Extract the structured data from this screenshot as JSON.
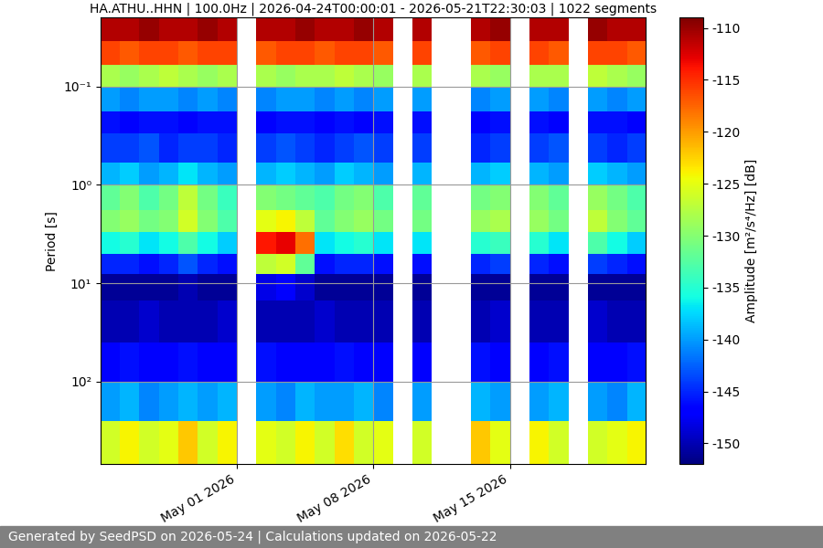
{
  "chart_data": {
    "type": "heatmap",
    "title": "HA.ATHU..HHN | 100.0Hz | 2026-04-24T00:00:01 - 2026-05-21T22:30:03 | 1022 segments",
    "y_label": "Period [s]",
    "colorbar_label": "Amplitude [m²/s⁴/Hz] [dB]",
    "footer": "Generated by SeedPSD on 2026-05-24 | Calculations updated on 2026-05-22",
    "log": "y",
    "grid": true,
    "x": [
      "2026-04-24",
      "2026-04-25",
      "2026-04-26",
      "2026-04-27",
      "2026-04-28",
      "2026-04-29",
      "2026-04-30",
      "2026-05-01",
      "2026-05-02",
      "2026-05-03",
      "2026-05-04",
      "2026-05-05",
      "2026-05-06",
      "2026-05-07",
      "2026-05-08",
      "2026-05-09",
      "2026-05-10",
      "2026-05-11",
      "2026-05-12",
      "2026-05-13",
      "2026-05-14",
      "2026-05-15",
      "2026-05-16",
      "2026-05-17",
      "2026-05-18",
      "2026-05-19",
      "2026-05-20",
      "2026-05-21"
    ],
    "xlim": [
      "2026-04-24T00:00:01",
      "2026-05-21T22:30:03"
    ],
    "xticks": [
      {
        "value": "2026-05-01",
        "label": "May 01 2026"
      },
      {
        "value": "2026-05-08",
        "label": "May 08 2026"
      },
      {
        "value": "2026-05-15",
        "label": "May 15 2026"
      }
    ],
    "period_edges": [
      0.02,
      0.035,
      0.06,
      0.1,
      0.18,
      0.3,
      0.6,
      1,
      1.8,
      3,
      5,
      8,
      15,
      40,
      100,
      250,
      690
    ],
    "ylim": [
      690,
      0.02
    ],
    "yticks": [
      {
        "value": 0.1,
        "label": "10⁻¹"
      },
      {
        "value": 1,
        "label": "10⁰"
      },
      {
        "value": 10,
        "label": "10¹"
      },
      {
        "value": 100,
        "label": "10²"
      }
    ],
    "colorbar_range": [
      -152,
      -109
    ],
    "colorbar_ticks": [
      -110,
      -115,
      -120,
      -125,
      -130,
      -135,
      -140,
      -145,
      -150
    ],
    "cells": [
      [
        -111,
        -111,
        -110,
        -111,
        -111,
        -110,
        -111,
        null,
        -111,
        -111,
        -110,
        -111,
        -111,
        -110,
        -111,
        null,
        -111,
        null,
        null,
        -111,
        -110,
        null,
        -111,
        -111,
        null,
        -110,
        -111,
        -111
      ],
      [
        -116,
        -117,
        -116,
        -116,
        -117,
        -116,
        -116,
        null,
        -117,
        -116,
        -116,
        -117,
        -116,
        -116,
        -117,
        null,
        -116,
        null,
        null,
        -117,
        -116,
        null,
        -116,
        -117,
        null,
        -116,
        -116,
        -117
      ],
      [
        -128,
        -129,
        -128,
        -127,
        -128,
        -129,
        -128,
        null,
        -128,
        -129,
        -128,
        -128,
        -127,
        -128,
        -129,
        null,
        -128,
        null,
        null,
        -128,
        -129,
        null,
        -128,
        -128,
        null,
        -127,
        -128,
        -129
      ],
      [
        -140,
        -141,
        -140,
        -140,
        -141,
        -140,
        -141,
        null,
        -141,
        -140,
        -140,
        -141,
        -140,
        -141,
        -140,
        null,
        -140,
        null,
        null,
        -141,
        -140,
        null,
        -140,
        -141,
        null,
        -140,
        -141,
        -140
      ],
      [
        -146,
        -147,
        -146,
        -146,
        -147,
        -146,
        -146,
        null,
        -147,
        -146,
        -146,
        -147,
        -146,
        -147,
        -146,
        null,
        -146,
        null,
        null,
        -147,
        -146,
        null,
        -146,
        -147,
        null,
        -146,
        -146,
        -147
      ],
      [
        -144,
        -144,
        -143,
        -145,
        -144,
        -144,
        -145,
        null,
        -144,
        -143,
        -144,
        -145,
        -144,
        -143,
        -144,
        null,
        -144,
        null,
        null,
        -145,
        -144,
        null,
        -144,
        -143,
        null,
        -144,
        -145,
        -144
      ],
      [
        -139,
        -138,
        -140,
        -139,
        -137,
        -139,
        -140,
        null,
        -139,
        -138,
        -139,
        -140,
        -138,
        -139,
        -140,
        null,
        -139,
        null,
        null,
        -139,
        -138,
        null,
        -139,
        -140,
        null,
        -138,
        -139,
        -140
      ],
      [
        -132,
        -130,
        -133,
        -131,
        -127,
        -131,
        -134,
        null,
        -130,
        -131,
        -132,
        -133,
        -131,
        -130,
        -133,
        null,
        -132,
        null,
        null,
        -131,
        -130,
        null,
        -130,
        -132,
        null,
        -129,
        -131,
        -133
      ],
      [
        -130,
        -129,
        -131,
        -130,
        -126,
        -130,
        -133,
        null,
        -125,
        -124,
        -127,
        -132,
        -130,
        -129,
        -131,
        null,
        -131,
        null,
        null,
        -129,
        -128,
        null,
        -129,
        -131,
        null,
        -127,
        -130,
        -132
      ],
      [
        -136,
        -135,
        -137,
        -136,
        -133,
        -136,
        -138,
        null,
        -114,
        -113,
        -118,
        -137,
        -136,
        -135,
        -137,
        null,
        -137,
        null,
        null,
        -135,
        -134,
        null,
        -135,
        -137,
        null,
        -133,
        -136,
        -138
      ],
      [
        -145,
        -145,
        -146,
        -145,
        -143,
        -145,
        -146,
        null,
        -127,
        -126,
        -132,
        -146,
        -145,
        -145,
        -146,
        null,
        -146,
        null,
        null,
        -145,
        -144,
        null,
        -145,
        -146,
        null,
        -144,
        -145,
        -146
      ],
      [
        -151,
        -151,
        -151,
        -151,
        -150,
        -151,
        -151,
        null,
        -148,
        -147,
        -149,
        -151,
        -151,
        -151,
        -151,
        null,
        -151,
        null,
        null,
        -151,
        -151,
        null,
        -151,
        -151,
        null,
        -151,
        -151,
        -151
      ],
      [
        -150,
        -150,
        -149,
        -150,
        -150,
        -150,
        -149,
        null,
        -150,
        -150,
        -150,
        -149,
        -150,
        -150,
        -150,
        null,
        -150,
        null,
        null,
        -150,
        -149,
        null,
        -150,
        -150,
        null,
        -149,
        -150,
        -150
      ],
      [
        -147,
        -146,
        -147,
        -147,
        -146,
        -147,
        -147,
        null,
        -146,
        -147,
        -147,
        -147,
        -146,
        -147,
        -147,
        null,
        -147,
        null,
        null,
        -146,
        -147,
        null,
        -147,
        -146,
        null,
        -147,
        -147,
        -146
      ],
      [
        -140,
        -139,
        -141,
        -140,
        -139,
        -140,
        -139,
        null,
        -140,
        -141,
        -139,
        -140,
        -140,
        -139,
        -141,
        null,
        -140,
        null,
        null,
        -139,
        -140,
        null,
        -140,
        -139,
        null,
        -140,
        -141,
        -139
      ],
      [
        -126,
        -124,
        -126,
        -125,
        -122,
        -126,
        -124,
        null,
        -125,
        -126,
        -124,
        -126,
        -123,
        -126,
        -125,
        null,
        -126,
        null,
        null,
        -122,
        -125,
        null,
        -124,
        -126,
        null,
        -126,
        -125,
        -124
      ]
    ]
  }
}
